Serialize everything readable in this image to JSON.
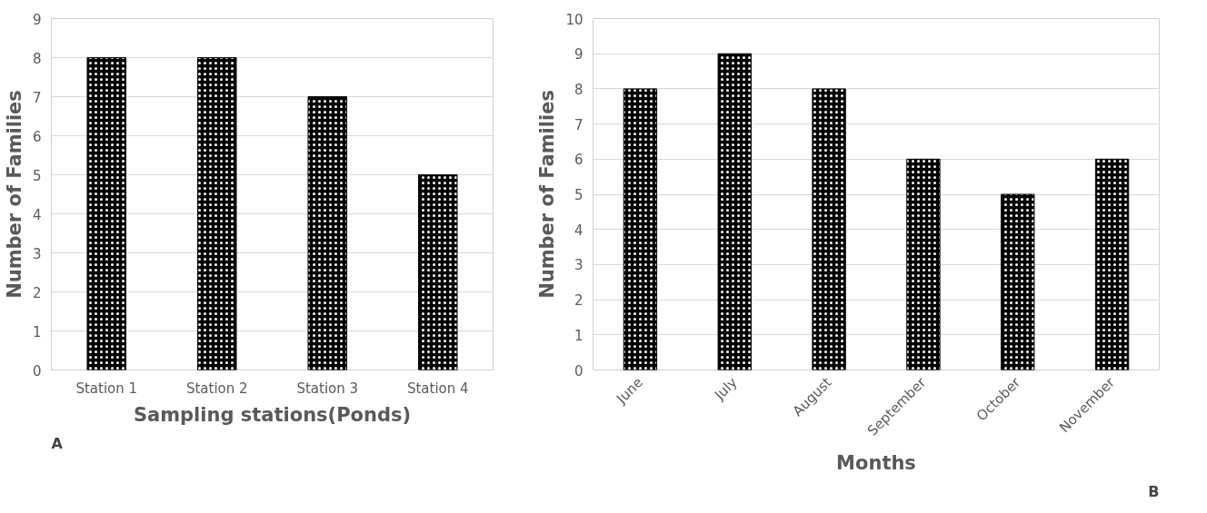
{
  "chart_data": [
    {
      "type": "bar",
      "xlabel": "Sampling stations(Ponds)",
      "ylabel": "Number of Families",
      "categories": [
        "Station 1",
        "Station 2",
        "Station 3",
        "Station 4"
      ],
      "series": [
        {
          "color": "#000000",
          "values": [
            8,
            8,
            7,
            5
          ]
        }
      ],
      "ylim": [
        0,
        9
      ],
      "yticks": [
        0,
        1,
        2,
        3,
        4,
        5,
        6,
        7,
        8,
        9
      ],
      "grid": "y",
      "annotations": [
        "A"
      ]
    },
    {
      "type": "bar",
      "xlabel": "Months",
      "ylabel": "Number of Families",
      "categories": [
        "June",
        "July",
        "August",
        "September",
        "October",
        "November"
      ],
      "series": [
        {
          "color": "#000000",
          "values": [
            8,
            9,
            8,
            6,
            5,
            6
          ]
        }
      ],
      "ylim": [
        0,
        10
      ],
      "yticks": [
        0,
        1,
        2,
        3,
        4,
        5,
        6,
        7,
        8,
        9,
        10
      ],
      "grid": "y",
      "annotations": [
        "B"
      ]
    }
  ]
}
